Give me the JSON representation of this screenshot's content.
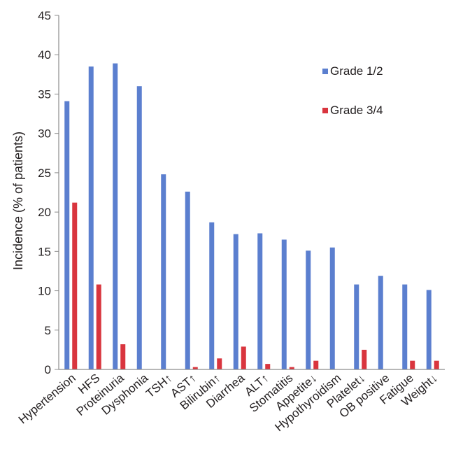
{
  "chart_data": {
    "type": "bar",
    "title": "",
    "xlabel": "",
    "ylabel": "Incidence (% of patients)",
    "ylim": [
      0,
      45
    ],
    "yticks": [
      0,
      5,
      10,
      15,
      20,
      25,
      30,
      35,
      40,
      45
    ],
    "grid": false,
    "legend_position": "top-right",
    "categories": [
      "Hypertension",
      "HFS",
      "Proteinuria",
      "Dysphonia",
      "TSH↑",
      "AST↑",
      "Bilirubin↑",
      "Diarrhea",
      "ALT↑",
      "Stomatitis",
      "Appetite↓",
      "Hypothyroidism",
      "Platelet↓",
      "OB positive",
      "Fatigue",
      "Weight↓"
    ],
    "series": [
      {
        "name": "Grade 1/2",
        "color": "#5b7fcf",
        "values": [
          34.1,
          38.5,
          38.9,
          36.0,
          24.8,
          22.6,
          18.7,
          17.2,
          17.3,
          16.5,
          15.1,
          15.5,
          10.8,
          11.9,
          10.8,
          10.1
        ]
      },
      {
        "name": "Grade 3/4",
        "color": "#d9353e",
        "values": [
          21.2,
          10.8,
          3.2,
          0,
          0,
          0.3,
          1.4,
          2.9,
          0.7,
          0.3,
          1.1,
          0,
          2.5,
          0,
          1.1,
          1.1
        ]
      }
    ]
  }
}
